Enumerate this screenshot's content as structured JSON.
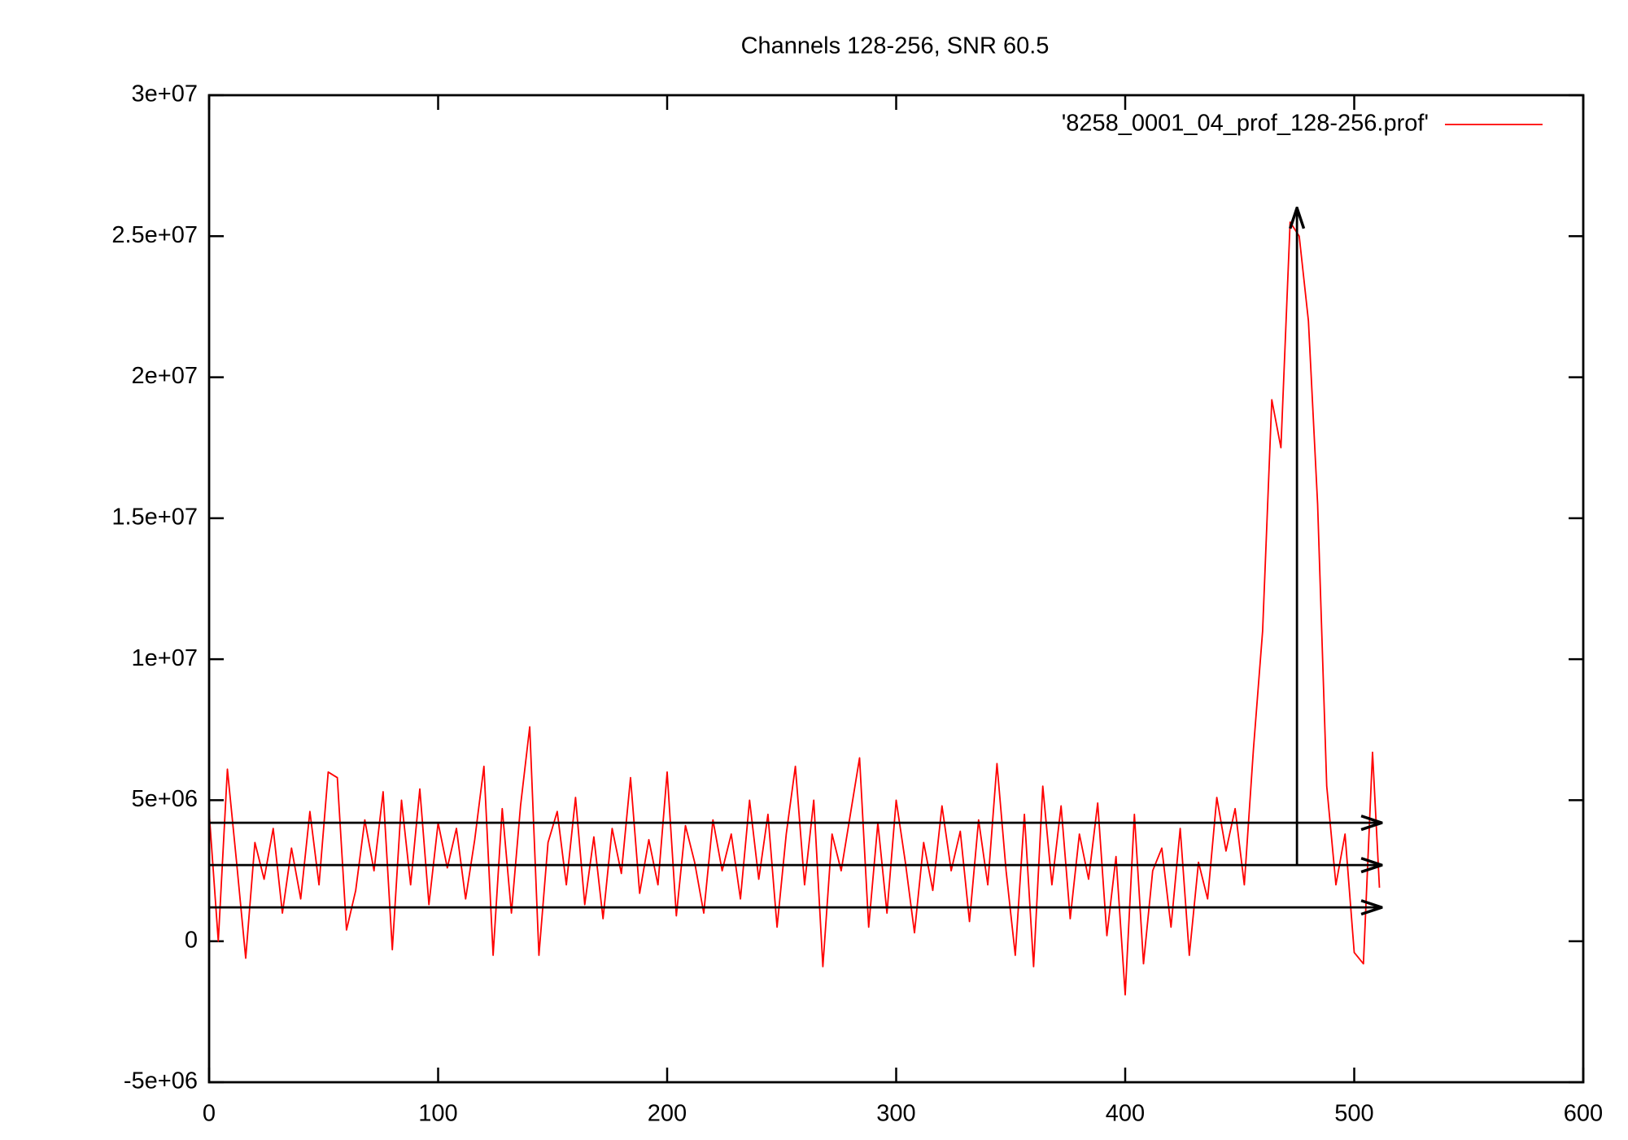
{
  "chart_data": {
    "type": "line",
    "title": "Channels 128-256, SNR 60.5",
    "x": [
      0,
      4,
      8,
      12,
      16,
      20,
      24,
      28,
      32,
      36,
      40,
      44,
      48,
      52,
      56,
      60,
      64,
      68,
      72,
      76,
      80,
      84,
      88,
      92,
      96,
      100,
      104,
      108,
      112,
      116,
      120,
      124,
      128,
      132,
      136,
      140,
      144,
      148,
      152,
      156,
      160,
      164,
      168,
      172,
      176,
      180,
      184,
      188,
      192,
      196,
      200,
      204,
      208,
      212,
      216,
      220,
      224,
      228,
      232,
      236,
      240,
      244,
      248,
      252,
      256,
      260,
      264,
      268,
      272,
      276,
      280,
      284,
      288,
      292,
      296,
      300,
      304,
      308,
      312,
      316,
      320,
      324,
      328,
      332,
      336,
      340,
      344,
      348,
      352,
      356,
      360,
      364,
      368,
      372,
      376,
      380,
      384,
      388,
      392,
      396,
      400,
      404,
      408,
      412,
      416,
      420,
      424,
      428,
      432,
      436,
      440,
      444,
      448,
      452,
      456,
      460,
      464,
      468,
      472,
      476,
      480,
      484,
      488,
      492,
      496,
      500,
      504,
      508,
      511
    ],
    "series": [
      {
        "name": "'8258_0001_04_prof_128-256.prof'",
        "color": "#ff0000",
        "values": [
          4600000,
          0,
          6100000,
          2800000,
          -600000,
          3500000,
          2200000,
          4000000,
          1000000,
          3300000,
          1500000,
          4600000,
          2000000,
          6000000,
          5800000,
          400000,
          1800000,
          4300000,
          2500000,
          5300000,
          -300000,
          5000000,
          2000000,
          5400000,
          1300000,
          4200000,
          2600000,
          4000000,
          1500000,
          3600000,
          6200000,
          -500000,
          4700000,
          1000000,
          4800000,
          7600000,
          -500000,
          3500000,
          4600000,
          2000000,
          5100000,
          1300000,
          3700000,
          800000,
          4000000,
          2400000,
          5800000,
          1700000,
          3600000,
          2000000,
          6000000,
          900000,
          4100000,
          2800000,
          1000000,
          4300000,
          2500000,
          3800000,
          1500000,
          5000000,
          2200000,
          4500000,
          500000,
          3800000,
          6200000,
          2000000,
          5000000,
          -900000,
          3800000,
          2500000,
          4500000,
          6500000,
          500000,
          4200000,
          1000000,
          5000000,
          2800000,
          300000,
          3500000,
          1800000,
          4800000,
          2500000,
          3900000,
          700000,
          4300000,
          2000000,
          6300000,
          2500000,
          -500000,
          4500000,
          -900000,
          5500000,
          2000000,
          4800000,
          800000,
          3800000,
          2200000,
          4900000,
          200000,
          3000000,
          -1900000,
          4500000,
          -800000,
          2500000,
          3300000,
          500000,
          4000000,
          -500000,
          2800000,
          1500000,
          5100000,
          3200000,
          4700000,
          2000000,
          6800000,
          11000000,
          19200000,
          17500000,
          25500000,
          25000000,
          22000000,
          15500000,
          5500000,
          2000000,
          3800000,
          -400000,
          -800000,
          6700000,
          1900000
        ]
      }
    ],
    "arrows": [
      {
        "from": [
          0,
          4200000
        ],
        "to": [
          512,
          4200000
        ]
      },
      {
        "from": [
          0,
          2700000
        ],
        "to": [
          512,
          2700000
        ]
      },
      {
        "from": [
          0,
          1200000
        ],
        "to": [
          512,
          1200000
        ]
      },
      {
        "from": [
          475,
          2700000
        ],
        "to": [
          475,
          26000000
        ]
      }
    ],
    "arrow_color": "#000000",
    "xlim": [
      0,
      600
    ],
    "xticks": [
      0,
      100,
      200,
      300,
      400,
      500,
      600
    ],
    "ylim": [
      -5000000,
      30000000
    ],
    "yticks": [
      {
        "value": -5000000,
        "label": "-5e+06"
      },
      {
        "value": 0,
        "label": "0"
      },
      {
        "value": 5000000,
        "label": "5e+06"
      },
      {
        "value": 10000000,
        "label": "1e+07"
      },
      {
        "value": 15000000,
        "label": "1.5e+07"
      },
      {
        "value": 20000000,
        "label": "2e+07"
      },
      {
        "value": 25000000,
        "label": "2.5e+07"
      },
      {
        "value": 30000000,
        "label": "3e+07"
      }
    ],
    "grid": false,
    "legend": "top-right"
  }
}
